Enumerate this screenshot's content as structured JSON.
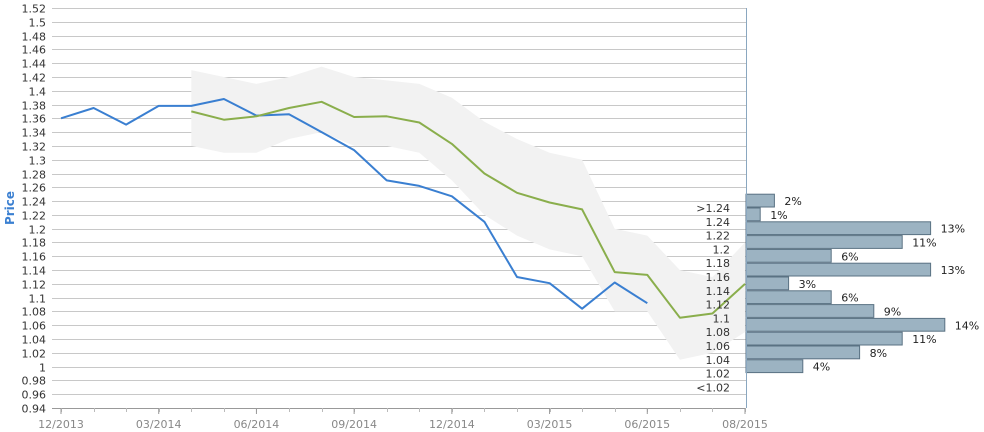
{
  "chart_data": {
    "type": "line",
    "ylabel": "Price",
    "xlabel": "",
    "ylim": [
      0.94,
      1.52
    ],
    "y_ticks": [
      "0.94",
      "0.96",
      "0.98",
      "1",
      "1.02",
      "1.04",
      "1.06",
      "1.08",
      "1.1",
      "1.12",
      "1.14",
      "1.16",
      "1.18",
      "1.2",
      "1.22",
      "1.24",
      "1.26",
      "1.28",
      "1.3",
      "1.32",
      "1.34",
      "1.36",
      "1.38",
      "1.4",
      "1.42",
      "1.44",
      "1.46",
      "1.48",
      "1.5",
      "1.52"
    ],
    "x_tick_labels": [
      "12/2013",
      "03/2014",
      "06/2014",
      "09/2014",
      "12/2014",
      "03/2015",
      "06/2015",
      "08/2015"
    ],
    "x_range": [
      0,
      21
    ],
    "grid": true,
    "series": [
      {
        "color": "#3a7fd1",
        "x": [
          0,
          1,
          2,
          3,
          4,
          5,
          6,
          7,
          8,
          9,
          10,
          11,
          12,
          13,
          14,
          15,
          16,
          17,
          18
        ],
        "values": [
          1.36,
          1.375,
          1.351,
          1.378,
          1.378,
          1.388,
          1.364,
          1.366,
          1.34,
          1.314,
          1.27,
          1.262,
          1.247,
          1.21,
          1.13,
          1.121,
          1.084,
          1.122,
          1.092
        ]
      },
      {
        "color": "#8aae4c",
        "x": [
          4,
          5,
          6,
          7,
          8,
          9,
          10,
          11,
          12,
          13,
          14,
          15,
          16,
          17,
          18,
          19,
          20,
          21
        ],
        "values": [
          1.37,
          1.358,
          1.363,
          1.375,
          1.384,
          1.362,
          1.363,
          1.354,
          1.323,
          1.28,
          1.252,
          1.238,
          1.228,
          1.137,
          1.133,
          1.071,
          1.077,
          1.12
        ]
      }
    ],
    "band": {
      "color": "#f2f2f2",
      "x": [
        4,
        5,
        6,
        7,
        8,
        9,
        10,
        11,
        12,
        13,
        14,
        15,
        16,
        17,
        18,
        19,
        20,
        21
      ],
      "upper": [
        1.43,
        1.42,
        1.41,
        1.42,
        1.435,
        1.42,
        1.415,
        1.41,
        1.39,
        1.355,
        1.33,
        1.31,
        1.3,
        1.2,
        1.19,
        1.14,
        1.13,
        1.18
      ],
      "lower": [
        1.32,
        1.31,
        1.31,
        1.33,
        1.34,
        1.32,
        1.32,
        1.31,
        1.27,
        1.22,
        1.19,
        1.17,
        1.16,
        1.08,
        1.08,
        1.01,
        1.02,
        1.05
      ]
    },
    "histogram": {
      "color": "#9cb3c2",
      "bins": [
        {
          "label": ">1.24",
          "value": 2,
          "text": "2%"
        },
        {
          "label": "1.24",
          "value": 1,
          "text": "1%"
        },
        {
          "label": "1.22",
          "value": 13,
          "text": "13%"
        },
        {
          "label": "1.2",
          "value": 11,
          "text": "11%"
        },
        {
          "label": "1.18",
          "value": 6,
          "text": "6%"
        },
        {
          "label": "1.16",
          "value": 13,
          "text": "13%"
        },
        {
          "label": "1.14",
          "value": 3,
          "text": "3%"
        },
        {
          "label": "1.12",
          "value": 6,
          "text": "6%"
        },
        {
          "label": "1.1",
          "value": 9,
          "text": "9%"
        },
        {
          "label": "1.08",
          "value": 14,
          "text": "14%"
        },
        {
          "label": "1.06",
          "value": 11,
          "text": "11%"
        },
        {
          "label": "1.04",
          "value": 8,
          "text": "8%"
        },
        {
          "label": "1.02",
          "value": 4,
          "text": "4%"
        },
        {
          "label": "<1.02",
          "value": 0,
          "text": ""
        }
      ]
    }
  }
}
